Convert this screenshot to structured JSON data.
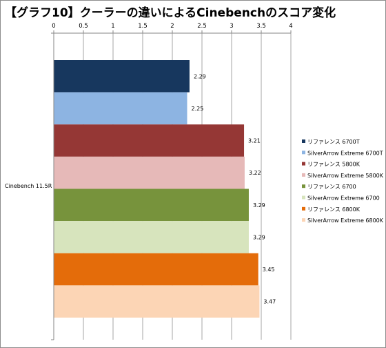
{
  "chart_data": {
    "type": "bar",
    "orientation": "horizontal",
    "title": "【グラフ10】クーラーの違いによるCinebenchのスコア変化",
    "categories": [
      "Cinebench 11.5R"
    ],
    "xlim": [
      0,
      4
    ],
    "x_ticks": [
      "0",
      "0.5",
      "1",
      "1.5",
      "2",
      "2.5",
      "3",
      "3.5",
      "4"
    ],
    "x_axis_position": "top",
    "grid": true,
    "legend_position": "right",
    "series": [
      {
        "name": "リファレンス 6700T",
        "value": 2.29,
        "label": "2.29",
        "color": "#17375e"
      },
      {
        "name": "SilverArrow Extreme 6700T",
        "value": 2.25,
        "label": "2.25",
        "color": "#8db4e2"
      },
      {
        "name": "リファレンス 5800K",
        "value": 3.21,
        "label": "3.21",
        "color": "#953735"
      },
      {
        "name": "SilverArrow Extreme 5800K",
        "value": 3.22,
        "label": "3.22",
        "color": "#e6b9b8"
      },
      {
        "name": "リファレンス 6700",
        "value": 3.29,
        "label": "3.29",
        "color": "#77933c"
      },
      {
        "name": "SilverArrow Extreme 6700",
        "value": 3.29,
        "label": "3.29",
        "color": "#d7e4bd"
      },
      {
        "name": "リファレンス 6800K",
        "value": 3.45,
        "label": "3.45",
        "color": "#e46c0a"
      },
      {
        "name": "SilverArrow Extreme 6800K",
        "value": 3.47,
        "label": "3.47",
        "color": "#fcd5b5"
      }
    ]
  }
}
